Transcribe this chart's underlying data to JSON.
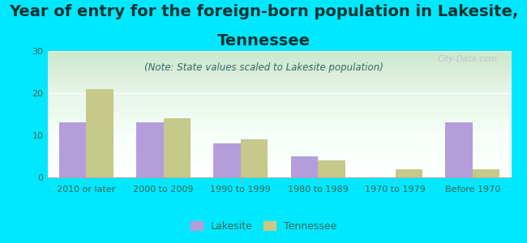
{
  "title_line1": "Year of entry for the foreign-born population in Lakesite,",
  "title_line2": "Tennessee",
  "subtitle": "(Note: State values scaled to Lakesite population)",
  "categories": [
    "2010 or later",
    "2000 to 2009",
    "1990 to 1999",
    "1980 to 1989",
    "1970 to 1979",
    "Before 1970"
  ],
  "lakesite_values": [
    13,
    13,
    8,
    5,
    0,
    13
  ],
  "tennessee_values": [
    21,
    14,
    9,
    4,
    2,
    2
  ],
  "lakesite_color": "#b39ddb",
  "tennessee_color": "#c5c98a",
  "background_color": "#00e8ff",
  "plot_bg_top_left": "#d4edd4",
  "plot_bg_right": "#f5fff5",
  "plot_bg_bottom": "#ffffff",
  "ylim": [
    0,
    30
  ],
  "yticks": [
    0,
    10,
    20,
    30
  ],
  "bar_width": 0.35,
  "title_fontsize": 14,
  "subtitle_fontsize": 8.5,
  "tick_fontsize": 8,
  "legend_fontsize": 9,
  "watermark": "City-Data.com",
  "title_color": "#003333",
  "tick_color": "#336655",
  "subtitle_color": "#336666"
}
